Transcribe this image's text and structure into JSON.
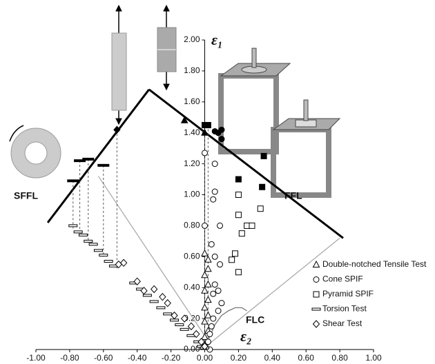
{
  "chart_data": {
    "type": "scatter",
    "x_label": "ε₂",
    "y_label": "ε₁",
    "xlim": [
      -1.0,
      1.0
    ],
    "ylim": [
      0.0,
      2.0
    ],
    "xticks": [
      {
        "value": -1.0,
        "label": "-1.00"
      },
      {
        "value": -0.8,
        "label": "-0.80"
      },
      {
        "value": -0.6,
        "label": "-0.60"
      },
      {
        "value": -0.4,
        "label": "-0.40"
      },
      {
        "value": -0.2,
        "label": "-0.20"
      },
      {
        "value": 0,
        "label": "0.00"
      },
      {
        "value": 0.2,
        "label": "0.20"
      },
      {
        "value": 0.4,
        "label": "0.40"
      },
      {
        "value": 0.6,
        "label": "0.60"
      },
      {
        "value": 0.8,
        "label": "0.80"
      },
      {
        "value": 1.0,
        "label": "1.00"
      }
    ],
    "yticks": [
      {
        "value": 0,
        "label": "0.00"
      },
      {
        "value": 0.2,
        "label": "0.20"
      },
      {
        "value": 0.4,
        "label": "0.40"
      },
      {
        "value": 0.6,
        "label": "0.60"
      },
      {
        "value": 0.8,
        "label": "0.80"
      },
      {
        "value": 1.0,
        "label": "1.00"
      },
      {
        "value": 1.2,
        "label": "1.20"
      },
      {
        "value": 1.4,
        "label": "1.40"
      },
      {
        "value": 1.6,
        "label": "1.60"
      },
      {
        "value": 1.8,
        "label": "1.80"
      },
      {
        "value": 2.0,
        "label": "2.00"
      }
    ],
    "series": [
      {
        "name": "Double-notched Tensile Test",
        "marker": "triangle",
        "filled": false,
        "color": "#000",
        "x": [
          0,
          0,
          0.02,
          0,
          0.02,
          0,
          0.02,
          0,
          0.02,
          0,
          0.02,
          0.02,
          0
        ],
        "values": [
          0.02,
          0.08,
          0.12,
          0.18,
          0.22,
          0.27,
          0.32,
          0.38,
          0.42,
          0.48,
          0.52,
          0.58,
          0.62
        ]
      },
      {
        "name": "Cone SPIF",
        "marker": "circle",
        "filled": false,
        "color": "#000",
        "x": [
          0.06,
          0.06,
          0.05,
          0,
          0,
          0.09,
          0.04,
          0.06,
          0.09,
          0.06,
          0.08,
          0.05,
          0.1,
          0.08,
          0.05,
          0.04,
          0.03,
          0.02,
          0,
          0.03
        ],
        "values": [
          1.2,
          1.02,
          0.97,
          1.27,
          0.8,
          0.8,
          0.68,
          0.6,
          0.55,
          0.42,
          0.38,
          0.36,
          0.3,
          0.25,
          0.2,
          0.15,
          0.1,
          0.05,
          0.02,
          0
        ]
      },
      {
        "name": "Pyramid SPIF",
        "marker": "square",
        "filled": false,
        "color": "#000",
        "x": [
          0.2,
          0.2,
          0.25,
          0.33,
          0.28,
          0.22,
          0.18,
          0.16,
          0.2
        ],
        "values": [
          1.0,
          0.87,
          0.8,
          0.91,
          0.8,
          0.75,
          0.62,
          0.58,
          0.5
        ]
      },
      {
        "name": "Torsion Test",
        "marker": "dash",
        "filled": false,
        "color": "#000",
        "x": [
          -0.78,
          -0.75,
          -0.72,
          -0.69,
          -0.66,
          -0.63,
          -0.6,
          -0.57,
          -0.54,
          -0.42,
          -0.38,
          -0.34,
          -0.3,
          -0.26,
          -0.22,
          -0.18,
          -0.15,
          -0.12,
          -0.08,
          -0.04,
          -0.02,
          0
        ],
        "values": [
          0.8,
          0.76,
          0.74,
          0.7,
          0.68,
          0.64,
          0.61,
          0.57,
          0.54,
          0.43,
          0.39,
          0.35,
          0.31,
          0.27,
          0.23,
          0.19,
          0.16,
          0.13,
          0.09,
          0.05,
          0.02,
          0.01
        ]
      },
      {
        "name": "Shear Test",
        "marker": "diamond",
        "filled": false,
        "color": "#000",
        "x": [
          -0.51,
          -0.48,
          -0.4,
          -0.36,
          -0.3,
          -0.25,
          -0.22,
          -0.18,
          -0.12,
          -0.08,
          -0.05,
          -0.02,
          0
        ],
        "values": [
          0.55,
          0.56,
          0.44,
          0.38,
          0.39,
          0.34,
          0.3,
          0.22,
          0.2,
          0.15,
          0.1,
          0.05,
          0.02
        ]
      },
      {
        "marker": "triangle",
        "filled": true,
        "color": "#000",
        "x": [
          -0.12,
          0
        ],
        "values": [
          1.48,
          1.4
        ]
      },
      {
        "marker": "circle",
        "filled": true,
        "color": "#000",
        "x": [
          0.06,
          0.08,
          0.1,
          0.1
        ],
        "values": [
          1.41,
          1.4,
          1.42,
          1.36
        ]
      },
      {
        "marker": "square",
        "filled": true,
        "color": "#000",
        "x": [
          0,
          0.02,
          0.2,
          0.34,
          0.35
        ],
        "values": [
          1.45,
          1.45,
          1.1,
          1.05,
          1.25
        ]
      },
      {
        "marker": "dash",
        "filled": true,
        "color": "#000",
        "x": [
          -0.78,
          -0.74,
          -0.69,
          -0.6
        ],
        "values": [
          1.09,
          1.22,
          1.23,
          1.19
        ]
      },
      {
        "marker": "diamond",
        "filled": true,
        "color": "#000",
        "x": [
          -0.52
        ],
        "values": [
          1.42
        ]
      }
    ],
    "lines": [
      {
        "label": "SFFL",
        "color": "#000",
        "x": [
          -0.93,
          -0.33
        ],
        "values": [
          0.82,
          1.68
        ]
      },
      {
        "label": "FFL",
        "color": "#000",
        "x": [
          -0.33,
          0.82
        ],
        "values": [
          1.68,
          0.72
        ]
      },
      {
        "label": "FLC",
        "color": "#777",
        "x": [
          0.02,
          0.06,
          0.1,
          0.14,
          0.18,
          0.22,
          0.25
        ],
        "values": [
          0.06,
          0.16,
          0.22,
          0.25,
          0.27,
          0.27,
          0.25
        ]
      },
      {
        "color": "#aaa",
        "x": [
          -0.63,
          0.03,
          0.8
        ],
        "values": [
          1.12,
          0.04,
          0.72
        ]
      }
    ]
  }
}
